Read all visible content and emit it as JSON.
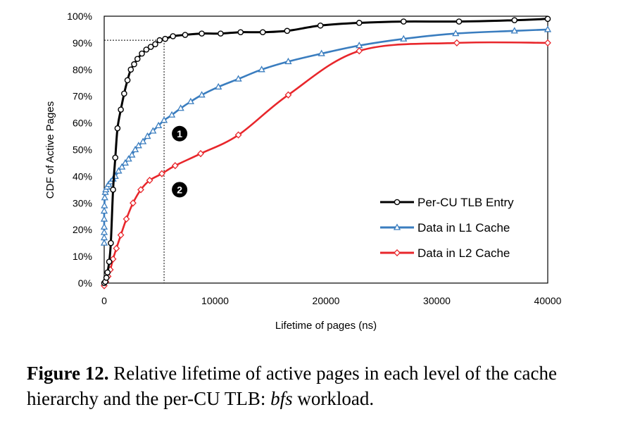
{
  "chart_data": {
    "type": "line",
    "xlabel": "Lifetime of pages (ns)",
    "ylabel": "CDF of Active Pages",
    "xlim": [
      0,
      40000
    ],
    "ylim": [
      0,
      100
    ],
    "x_ticks": [
      "0",
      "10000",
      "20000",
      "30000",
      "40000"
    ],
    "y_ticks": [
      "0%",
      "10%",
      "20%",
      "30%",
      "40%",
      "50%",
      "60%",
      "70%",
      "80%",
      "90%",
      "100%"
    ],
    "grid": false,
    "legend_position": "bottom-right",
    "reference_lines": {
      "x": 5400,
      "y": 91
    },
    "annotations": [
      {
        "label": "1",
        "x": 6800,
        "y": 56
      },
      {
        "label": "2",
        "x": 6800,
        "y": 35
      }
    ],
    "series": [
      {
        "name": "Per-CU TLB Entry",
        "color": "#000000",
        "marker": "circle",
        "x": [
          0,
          100,
          200,
          300,
          450,
          600,
          800,
          1000,
          1200,
          1500,
          1800,
          2100,
          2400,
          2700,
          3000,
          3400,
          3800,
          4200,
          4600,
          5000,
          5500,
          6200,
          7300,
          8800,
          10500,
          12300,
          14300,
          16500,
          19500,
          23000,
          27000,
          32000,
          37000,
          40000
        ],
        "y": [
          0,
          0.5,
          2,
          4,
          8,
          15,
          35,
          47,
          58,
          65,
          71,
          76,
          80,
          82,
          84,
          86,
          87.5,
          88.5,
          89.5,
          91,
          91.5,
          92.5,
          93,
          93.5,
          93.5,
          94,
          94,
          94.5,
          96.5,
          97.5,
          98,
          98,
          98.5,
          99
        ]
      },
      {
        "name": "Data in L1 Cache",
        "color": "#3a7dbf",
        "marker": "triangle",
        "x": [
          0,
          0,
          0,
          0,
          0,
          0,
          20,
          50,
          100,
          150,
          250,
          400,
          600,
          800,
          1000,
          1300,
          1600,
          1900,
          2200,
          2500,
          2800,
          3100,
          3500,
          3900,
          4400,
          4900,
          5400,
          6100,
          6900,
          7800,
          8800,
          10300,
          12100,
          14200,
          16600,
          19600,
          23000,
          27000,
          31700,
          37000,
          40000
        ],
        "y": [
          15,
          17,
          19,
          21,
          24,
          27,
          29,
          32,
          34,
          35,
          36,
          37,
          38,
          39,
          40,
          42,
          43.5,
          45,
          46.5,
          48,
          50,
          51.5,
          53,
          55,
          57,
          59,
          61,
          63,
          65.5,
          68,
          70.5,
          73.5,
          76.5,
          80,
          83,
          86,
          89,
          91.5,
          93.5,
          94.5,
          95
        ]
      },
      {
        "name": "Data in L2 Cache",
        "color": "#e8262b",
        "marker": "diamond",
        "x": [
          0,
          150,
          350,
          550,
          800,
          1100,
          1500,
          2000,
          2600,
          3300,
          4100,
          5200,
          6400,
          8700,
          12100,
          16600,
          23000,
          31800,
          40000
        ],
        "y": [
          -1,
          0.5,
          2.5,
          5,
          9,
          13,
          18,
          24,
          30,
          35,
          38.5,
          41,
          44,
          48.5,
          55.5,
          70.5,
          87,
          90,
          90
        ]
      }
    ]
  },
  "caption": {
    "label": "Figure 12.",
    "text": "Relative lifetime of active pages in each level of the cache hierarchy and the per-CU TLB:",
    "workload": "bfs",
    "suffix": "workload."
  }
}
